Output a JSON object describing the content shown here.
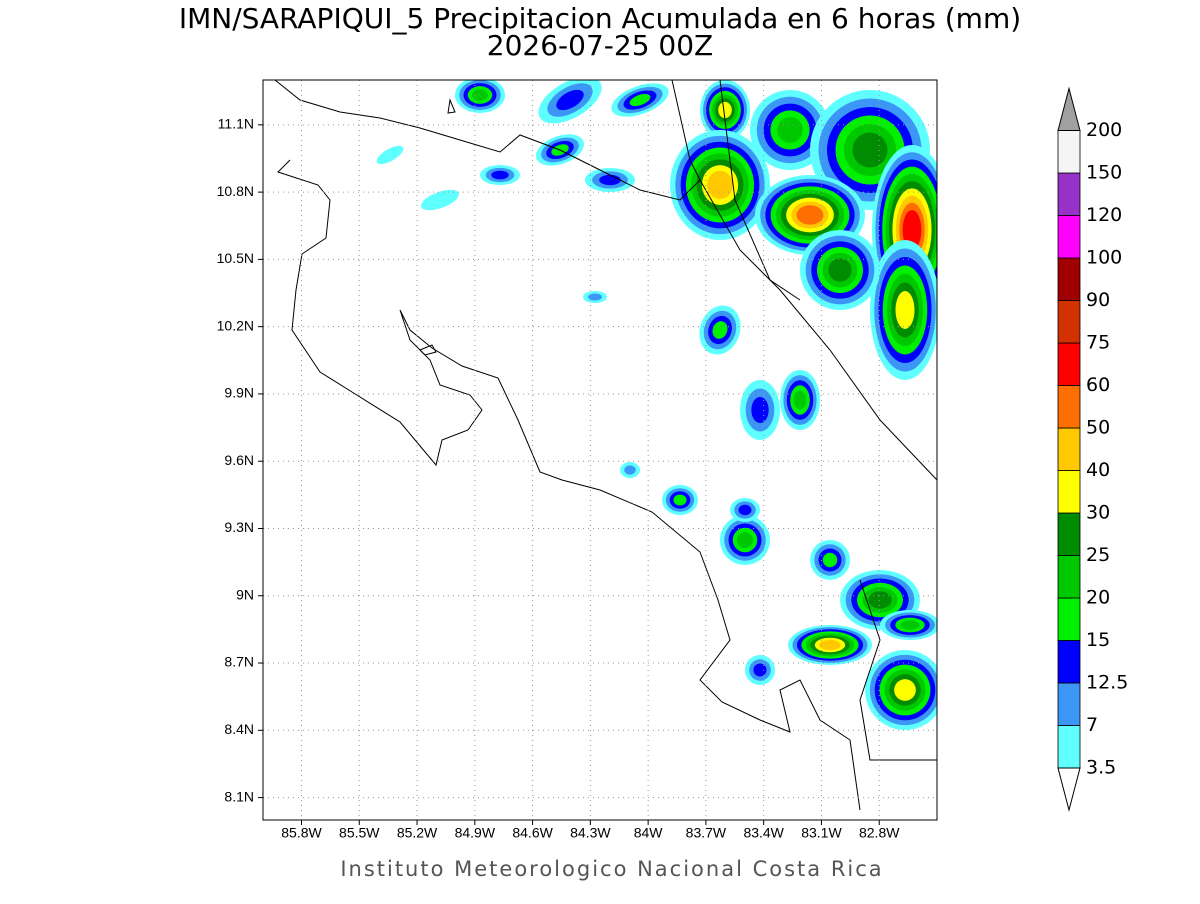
{
  "header": {
    "title": "IMN/SARAPIQUI_5 Precipitacion Acumulada en 6 horas (mm)",
    "subtitle": "2026-07-25 00Z"
  },
  "map": {
    "xlim": [
      -86,
      -82.5
    ],
    "ylim": [
      8,
      11.3
    ],
    "xticks": [
      {
        "value": -85.8,
        "label": "85.8W"
      },
      {
        "value": -85.5,
        "label": "85.5W"
      },
      {
        "value": -85.2,
        "label": "85.2W"
      },
      {
        "value": -84.9,
        "label": "84.9W"
      },
      {
        "value": -84.6,
        "label": "84.6W"
      },
      {
        "value": -84.3,
        "label": "84.3W"
      },
      {
        "value": -84,
        "label": "84W"
      },
      {
        "value": -83.7,
        "label": "83.7W"
      },
      {
        "value": -83.4,
        "label": "83.4W"
      },
      {
        "value": -83.1,
        "label": "83.1W"
      },
      {
        "value": -82.8,
        "label": "82.8W"
      }
    ],
    "yticks": [
      {
        "value": 8.1,
        "label": "8.1N"
      },
      {
        "value": 8.4,
        "label": "8.4N"
      },
      {
        "value": 8.7,
        "label": "8.7N"
      },
      {
        "value": 9,
        "label": "9N"
      },
      {
        "value": 9.3,
        "label": "9.3N"
      },
      {
        "value": 9.6,
        "label": "9.6N"
      },
      {
        "value": 9.9,
        "label": "9.9N"
      },
      {
        "value": 10.2,
        "label": "10.2N"
      },
      {
        "value": 10.5,
        "label": "10.5N"
      },
      {
        "value": 10.8,
        "label": "10.8N"
      },
      {
        "value": 11.1,
        "label": "11.1N"
      }
    ],
    "grid": true
  },
  "colorbar": {
    "levels": [
      3.5,
      7,
      12.5,
      15,
      20,
      25,
      30,
      40,
      50,
      60,
      75,
      90,
      100,
      120,
      150,
      200
    ],
    "colors": [
      "#60ffff",
      "#3c96f5",
      "#0000ff",
      "#00f000",
      "#00c800",
      "#008c00",
      "#ffff00",
      "#ffc800",
      "#ff6e00",
      "#ff0000",
      "#d23200",
      "#a00000",
      "#ff00ff",
      "#9632c8",
      "#f5f5f5"
    ],
    "under_color": "#ffffff",
    "over_color": "#a0a0a0"
  },
  "footer": "Instituto Meteorologico Nacional Costa Rica"
}
